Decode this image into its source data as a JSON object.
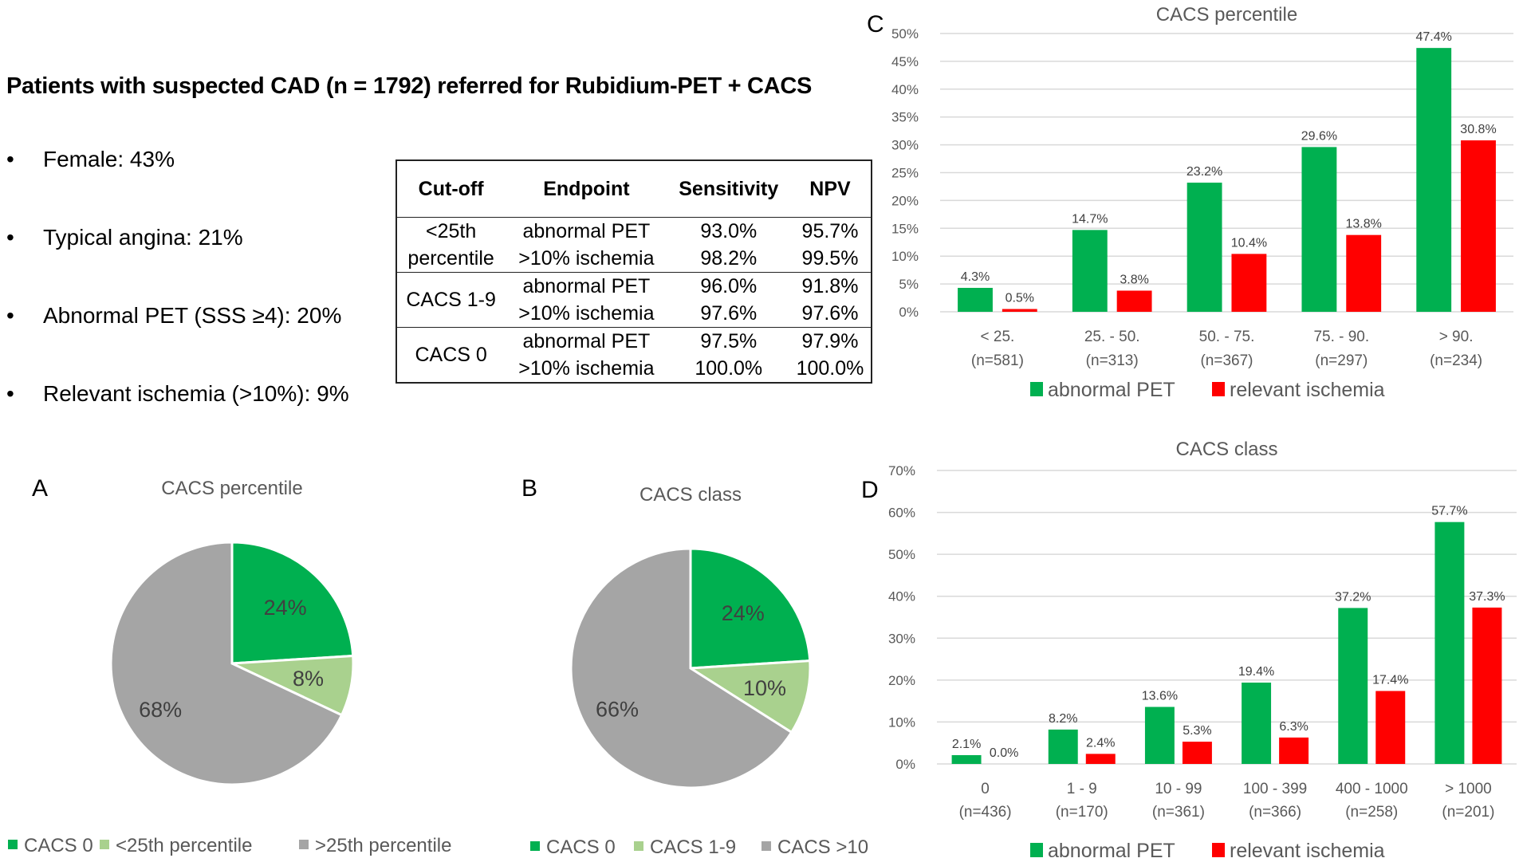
{
  "title": "Patients with suspected CAD (n = 1792) referred for Rubidium-PET + CACS",
  "bullets": [
    "Female: 43%",
    "Typical angina: 21%",
    "Abnormal PET (SSS ≥4): 20%",
    "Relevant ischemia (>10%): 9%"
  ],
  "bullet_glyph": "•",
  "table": {
    "headers": [
      "Cut-off",
      "Endpoint",
      "Sensitivity",
      "NPV"
    ],
    "groups": [
      {
        "cutoff": [
          "<25th",
          "percentile"
        ],
        "rows": [
          {
            "endpoint": "abnormal PET",
            "sensitivity": "93.0%",
            "npv": "95.7%"
          },
          {
            "endpoint": ">10% ischemia",
            "sensitivity": "98.2%",
            "npv": "99.5%"
          }
        ]
      },
      {
        "cutoff": [
          "CACS 1-9"
        ],
        "rows": [
          {
            "endpoint": "abnormal PET",
            "sensitivity": "96.0%",
            "npv": "91.8%"
          },
          {
            "endpoint": ">10% ischemia",
            "sensitivity": "97.6%",
            "npv": "97.6%"
          }
        ]
      },
      {
        "cutoff": [
          "CACS 0"
        ],
        "rows": [
          {
            "endpoint": "abnormal PET",
            "sensitivity": "97.5%",
            "npv": "97.9%"
          },
          {
            "endpoint": ">10% ischemia",
            "sensitivity": "100.0%",
            "npv": "100.0%"
          }
        ]
      }
    ]
  },
  "panels": {
    "a": "A",
    "b": "B",
    "c": "C",
    "d": "D"
  },
  "colors": {
    "green": "#00b050",
    "light_green": "#a9d18e",
    "gray": "#a5a5a5",
    "red": "#ff0000",
    "grid": "#d9d9d9"
  },
  "chart_data": [
    {
      "id": "A",
      "type": "pie",
      "title": "CACS percentile",
      "categories": [
        "CACS 0",
        "<25th percentile",
        ">25th percentile"
      ],
      "values": [
        24,
        8,
        68
      ],
      "labels": [
        "24%",
        "8%",
        "68%"
      ],
      "legend": "bottom"
    },
    {
      "id": "B",
      "type": "pie",
      "title": "CACS class",
      "categories": [
        "CACS 0",
        "CACS 1-9",
        "CACS >10"
      ],
      "values": [
        24,
        10,
        66
      ],
      "labels": [
        "24%",
        "10%",
        "66%"
      ],
      "legend": "bottom"
    },
    {
      "id": "C",
      "type": "bar",
      "title": "CACS percentile",
      "categories": [
        [
          "< 25.",
          "(n=581)"
        ],
        [
          "25. - 50.",
          "(n=313)"
        ],
        [
          "50. - 75.",
          "(n=367)"
        ],
        [
          "75. - 90.",
          "(n=297)"
        ],
        [
          "> 90.",
          "(n=234)"
        ]
      ],
      "series": [
        {
          "name": "abnormal PET",
          "values": [
            4.3,
            14.7,
            23.2,
            29.6,
            47.4
          ],
          "labels": [
            "4.3%",
            "14.7%",
            "23.2%",
            "29.6%",
            "47.4%"
          ]
        },
        {
          "name": "relevant ischemia",
          "values": [
            0.5,
            3.8,
            10.4,
            13.8,
            30.8
          ],
          "labels": [
            "0.5%",
            "3.8%",
            "10.4%",
            "13.8%",
            "30.8%"
          ]
        }
      ],
      "yticks": [
        "0%",
        "5%",
        "10%",
        "15%",
        "20%",
        "25%",
        "30%",
        "35%",
        "40%",
        "45%",
        "50%"
      ],
      "ylim": [
        0,
        50
      ],
      "ystep": 5,
      "grid": true,
      "legend": "bottom"
    },
    {
      "id": "D",
      "type": "bar",
      "title": "CACS class",
      "categories": [
        [
          "0",
          "(n=436)"
        ],
        [
          "1 - 9",
          "(n=170)"
        ],
        [
          "10 - 99",
          "(n=361)"
        ],
        [
          "100 - 399",
          "(n=366)"
        ],
        [
          "400 - 1000",
          "(n=258)"
        ],
        [
          "> 1000",
          "(n=201)"
        ]
      ],
      "series": [
        {
          "name": "abnormal PET",
          "values": [
            2.1,
            8.2,
            13.6,
            19.4,
            37.2,
            57.7
          ],
          "labels": [
            "2.1%",
            "8.2%",
            "13.6%",
            "19.4%",
            "37.2%",
            "57.7%"
          ]
        },
        {
          "name": "relevant ischemia",
          "values": [
            0.0,
            2.4,
            5.3,
            6.3,
            17.4,
            37.3
          ],
          "labels": [
            "0.0%",
            "2.4%",
            "5.3%",
            "6.3%",
            "17.4%",
            "37.3%"
          ]
        }
      ],
      "yticks": [
        "0%",
        "10%",
        "20%",
        "30%",
        "40%",
        "50%",
        "60%",
        "70%"
      ],
      "ylim": [
        0,
        70
      ],
      "ystep": 10,
      "grid": true,
      "legend": "bottom"
    }
  ]
}
